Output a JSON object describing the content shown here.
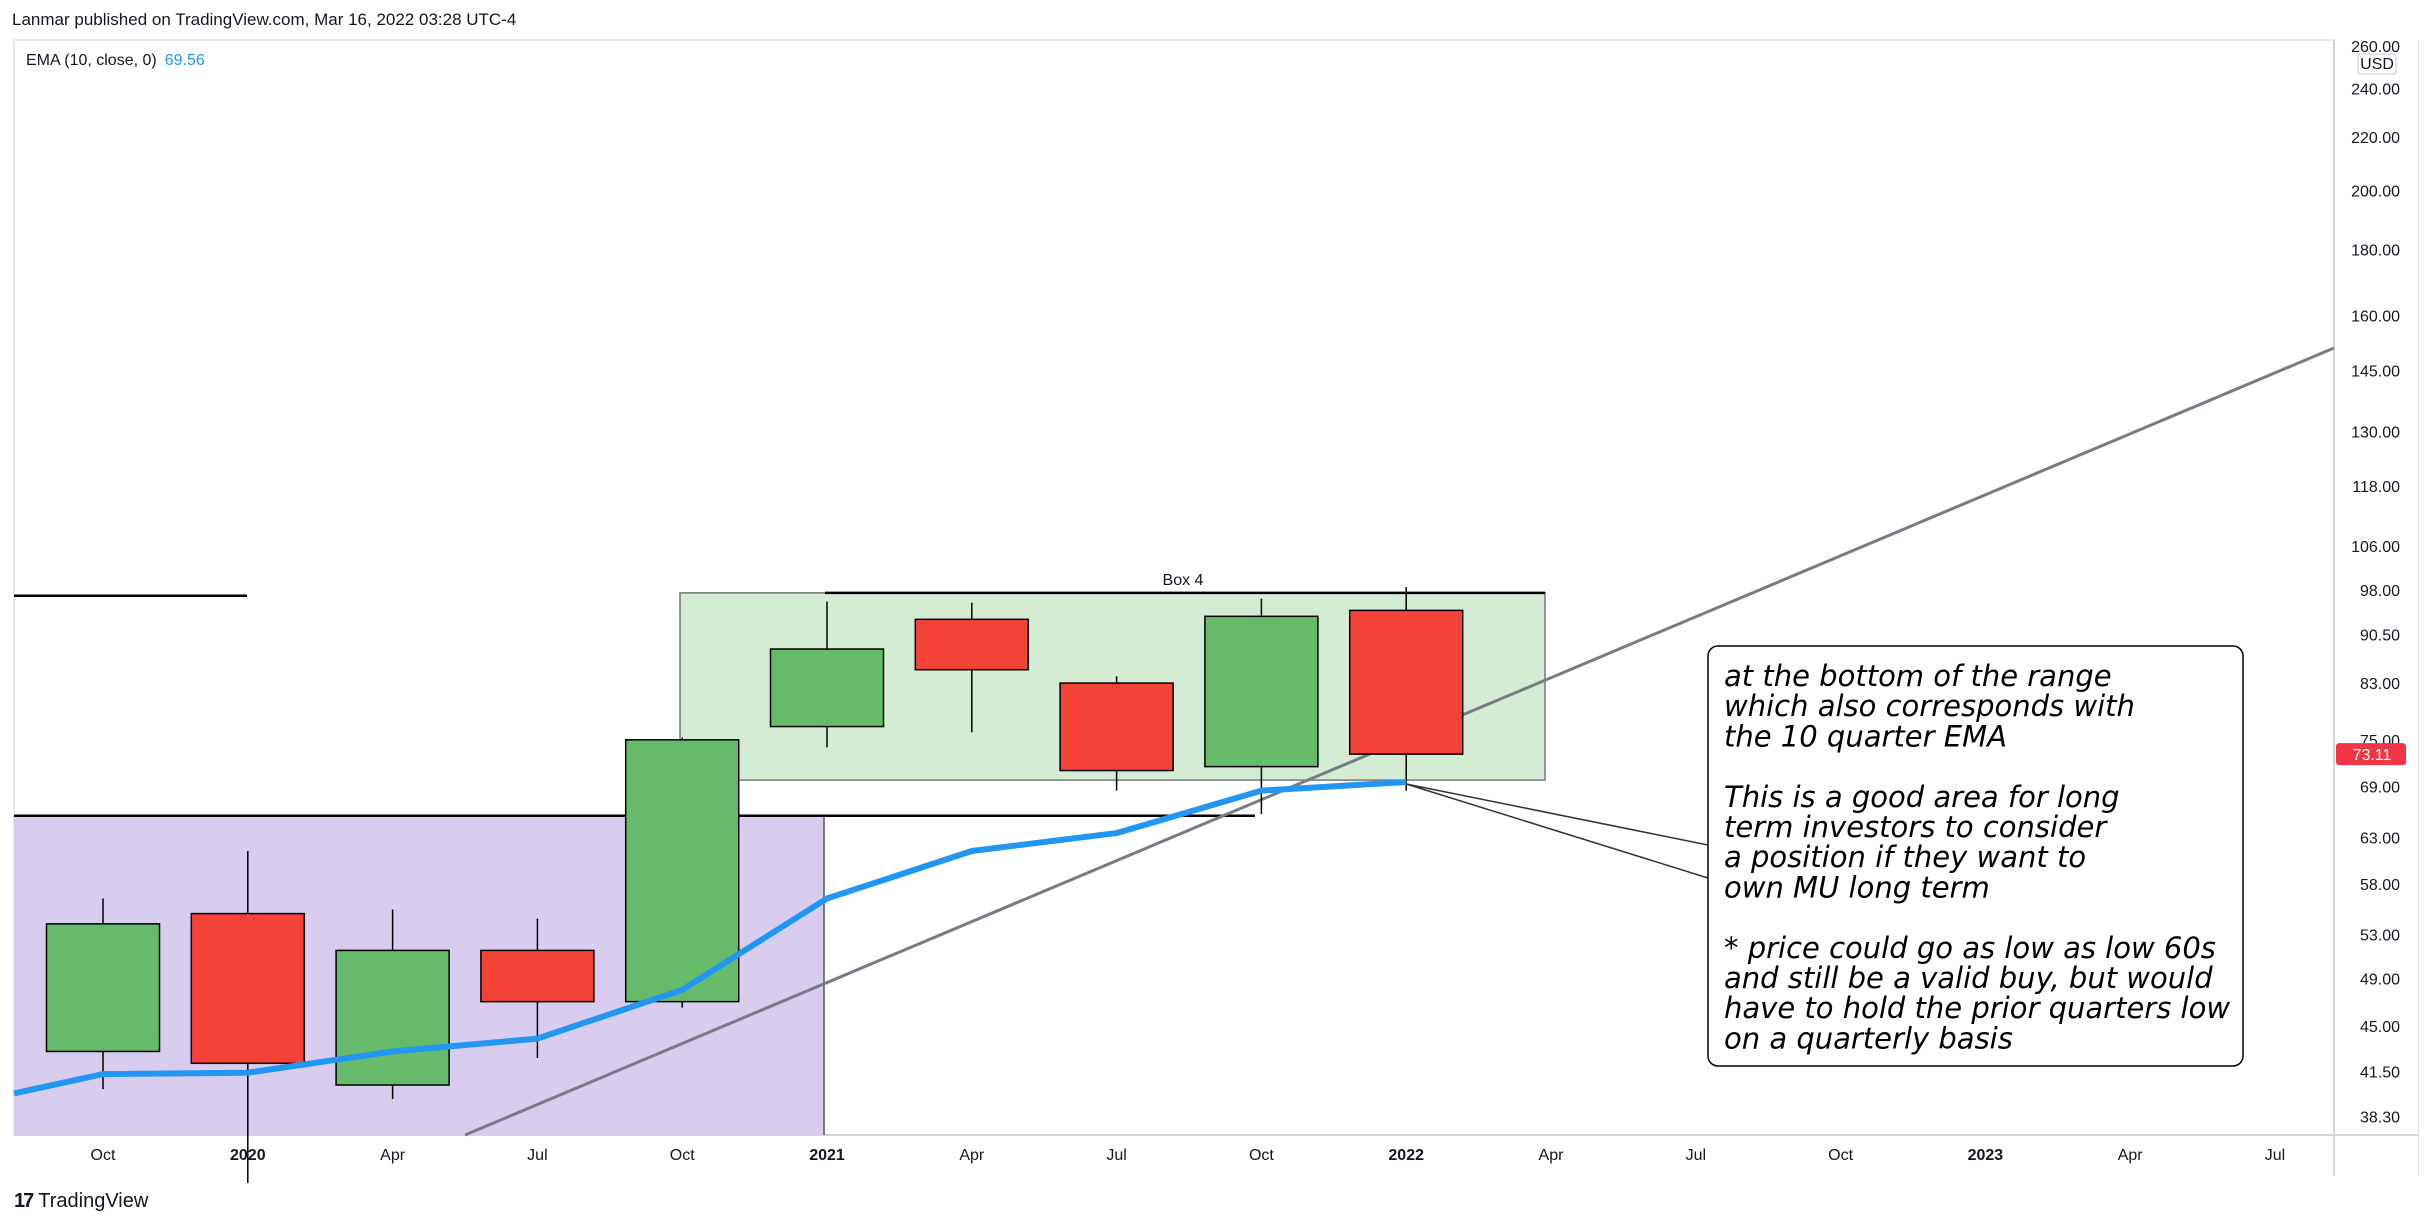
{
  "header": "Lanmar published on TradingView.com, Mar 16, 2022 03:28 UTC-4",
  "indicator": {
    "label": "EMA (10, close, 0)",
    "value": "69.56",
    "color": "#2196f3"
  },
  "footer": {
    "brand": "TradingView"
  },
  "chart_data": {
    "type": "candlestick",
    "price_scale": "log",
    "currency": "USD",
    "ylim": [
      37,
      262
    ],
    "y_ticks": [
      "260.00",
      "240.00",
      "220.00",
      "200.00",
      "180.00",
      "160.00",
      "145.00",
      "130.00",
      "118.00",
      "106.00",
      "98.00",
      "90.50",
      "83.00",
      "75.00",
      "69.00",
      "63.00",
      "58.00",
      "53.00",
      "49.00",
      "45.00",
      "41.50",
      "38.30"
    ],
    "x_ticks": [
      "Oct",
      "2020",
      "Apr",
      "Jul",
      "Oct",
      "2021",
      "Apr",
      "Jul",
      "Oct",
      "2022",
      "Apr",
      "Jul",
      "Oct",
      "2023",
      "Apr",
      "Jul"
    ],
    "x_ticks_bold": [
      "2020",
      "2021",
      "2022",
      "2023"
    ],
    "last_price": {
      "label": "73.11",
      "value": 73.11,
      "color": "#f23645"
    },
    "candles": [
      {
        "period": "2019 Q4",
        "open": 43.0,
        "high": 56.5,
        "low": 40.2,
        "close": 54.0
      },
      {
        "period": "2020 Q1",
        "open": 55.0,
        "high": 61.5,
        "low": 34.0,
        "close": 42.1
      },
      {
        "period": "2020 Q2",
        "open": 40.5,
        "high": 55.4,
        "low": 39.5,
        "close": 51.5
      },
      {
        "period": "2020 Q3",
        "open": 51.5,
        "high": 54.5,
        "low": 42.5,
        "close": 47.0
      },
      {
        "period": "2020 Q4",
        "open": 47.0,
        "high": 75.3,
        "low": 46.5,
        "close": 75.0
      },
      {
        "period": "2021 Q1",
        "open": 76.8,
        "high": 96.0,
        "low": 74.0,
        "close": 88.2
      },
      {
        "period": "2021 Q2",
        "open": 93.0,
        "high": 95.8,
        "low": 76.0,
        "close": 85.0
      },
      {
        "period": "2021 Q3",
        "open": 83.0,
        "high": 84.0,
        "low": 68.5,
        "close": 71.0
      },
      {
        "period": "2021 Q4",
        "open": 71.5,
        "high": 96.5,
        "low": 65.7,
        "close": 93.5
      },
      {
        "period": "2022 Q1",
        "open": 94.5,
        "high": 98.5,
        "low": 68.5,
        "close": 73.11
      }
    ],
    "ema": {
      "name": "EMA (10, close, 0)",
      "color": "#2196f3",
      "values": [
        41.3,
        41.4,
        43.0,
        44.0,
        48.0,
        56.5,
        61.5,
        63.5,
        68.5,
        69.56
      ]
    },
    "up_color": "#66bb6a",
    "down_color": "#f44336",
    "box_label": "Box 4",
    "box": {
      "price_top": 97.5,
      "price_bottom": 69.8,
      "fill": "#d4ecd4"
    },
    "purple_zone": {
      "price_top": 65.5,
      "fill": "#d9cdef"
    },
    "h_lines": [
      {
        "price": 97.0
      },
      {
        "price": 97.5
      },
      {
        "price": 65.5
      },
      {
        "price": 65.7
      }
    ],
    "trendline_color": "#787b86",
    "annotation": [
      "at the bottom of the range",
      "which also corresponds with",
      "the 10 quarter EMA",
      "",
      "This is a good area for long",
      "term investors to consider",
      "a position if they want to",
      "own MU long term",
      "",
      "* price could go as low as low 60s",
      "and still be a valid buy, but would",
      "have to hold the prior quarters low",
      "on a quarterly basis"
    ]
  }
}
